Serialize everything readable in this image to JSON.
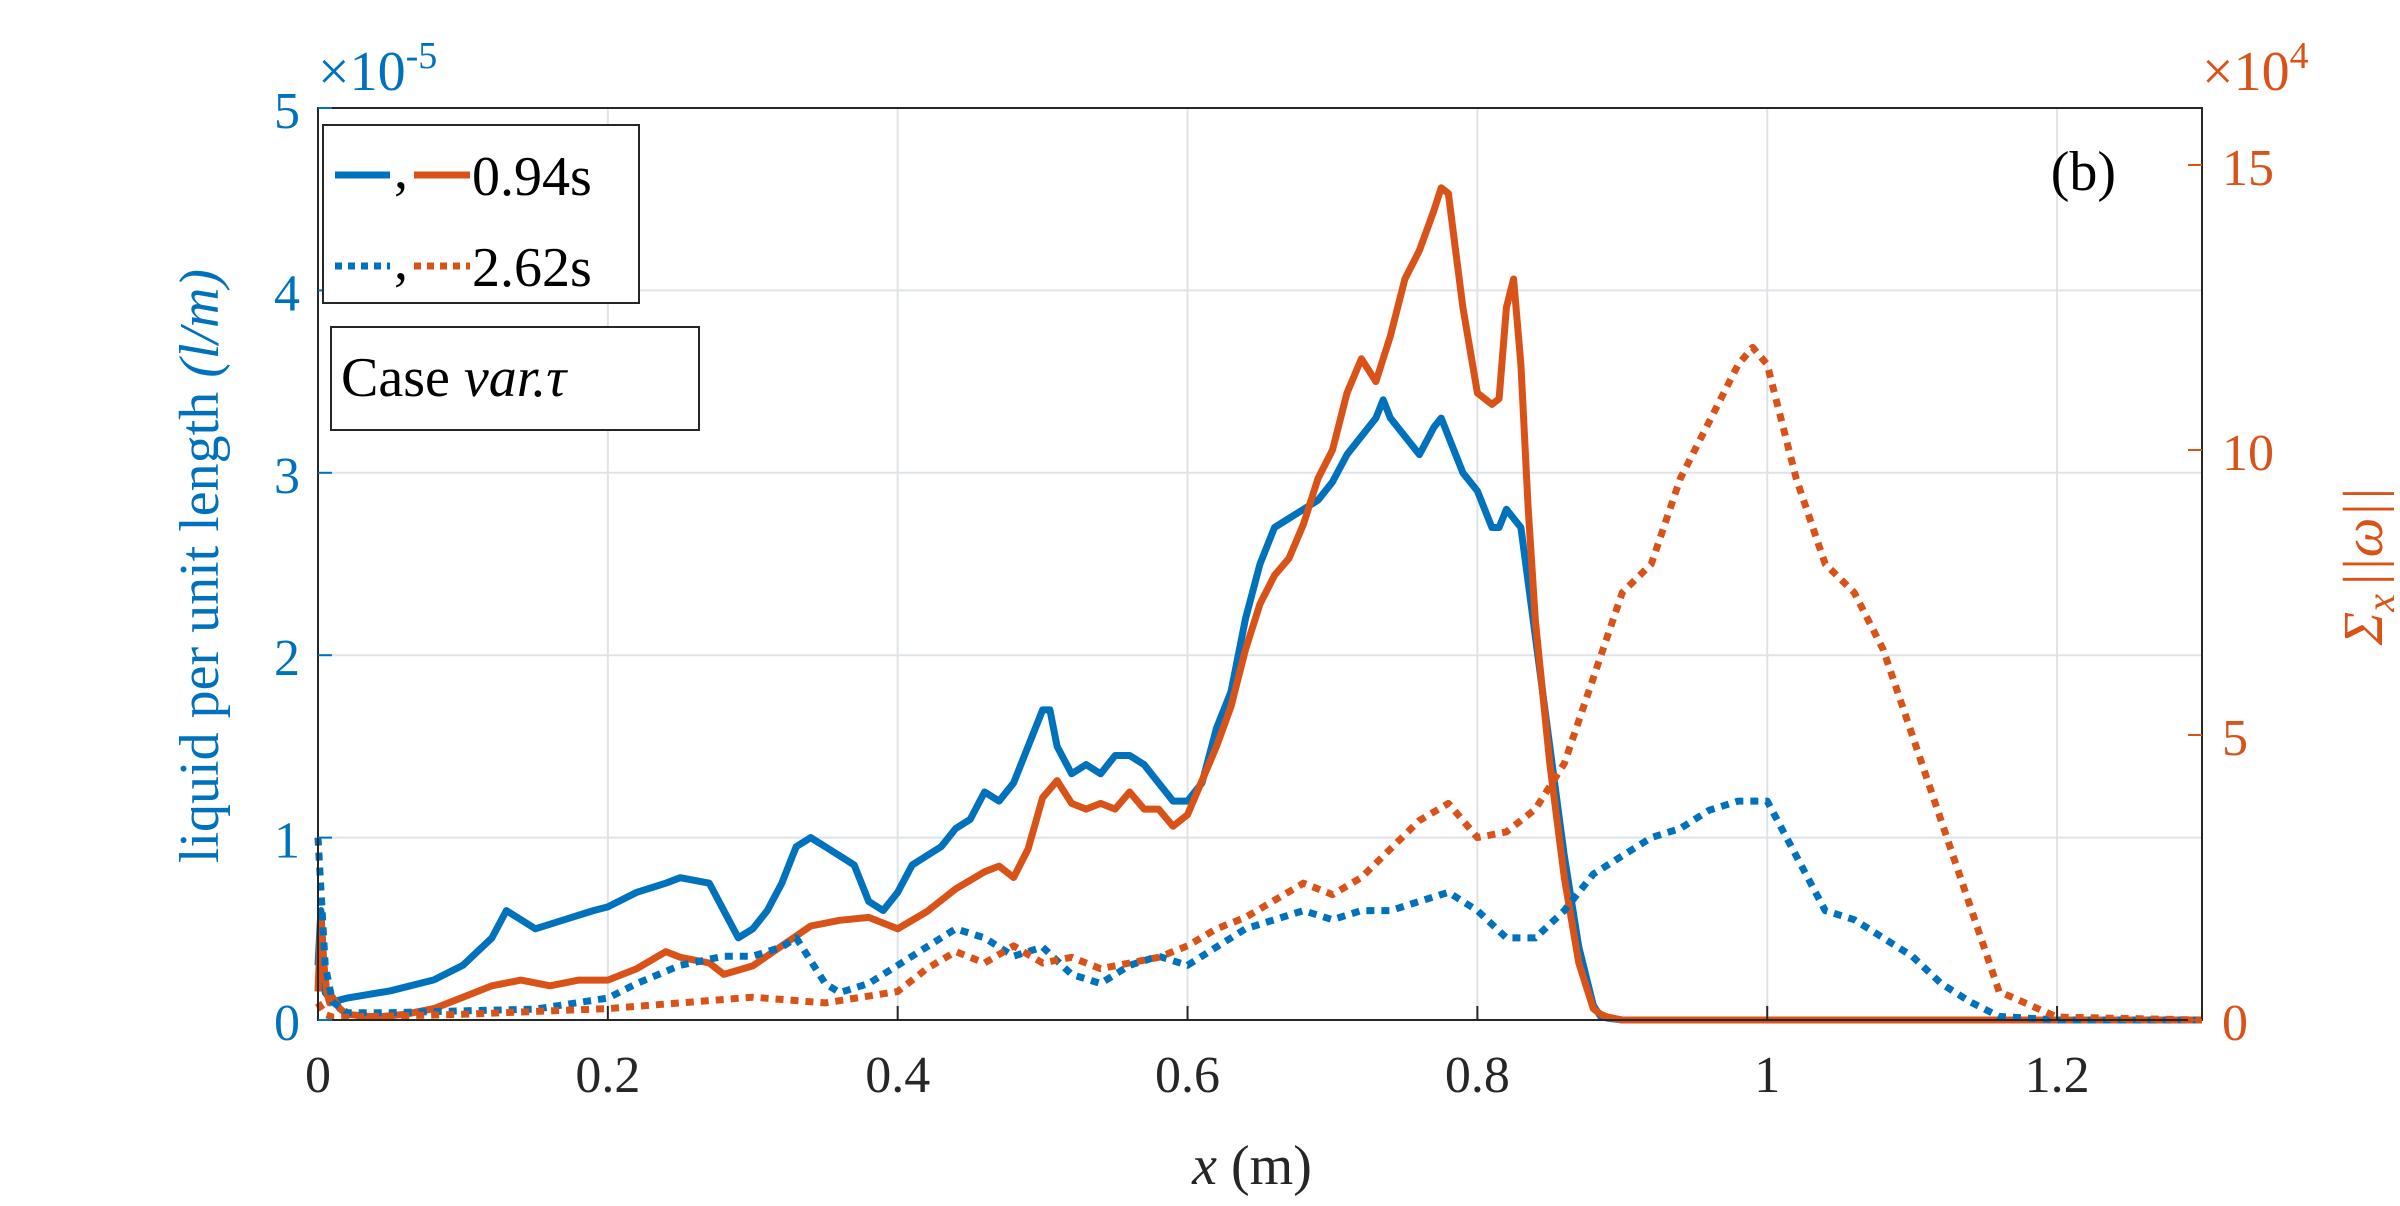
{
  "chart_data": {
    "type": "line",
    "panel_label": "(b)",
    "xlabel_var": "x",
    "xlabel_unit": "(m)",
    "xlim": [
      0,
      1.3
    ],
    "x_ticks": [
      0,
      0.2,
      0.4,
      0.6,
      0.8,
      1,
      1.2
    ],
    "x_tick_labels": [
      "0",
      "0.2",
      "0.4",
      "0.6",
      "0.8",
      "1",
      "1.2"
    ],
    "y_left": {
      "label_text": "liquid per unit length",
      "label_math": "(l/m)",
      "lim": [
        0,
        5
      ],
      "ticks": [
        0,
        1,
        2,
        3,
        4,
        5
      ],
      "tick_labels": [
        "0",
        "1",
        "2",
        "3",
        "4",
        "5"
      ],
      "exponent_base": "×10",
      "exponent_power": "-5",
      "color": "#0072BD"
    },
    "y_right": {
      "label_sigma": "Σ",
      "label_sub": "x",
      "label_omega": "||ω||",
      "lim": [
        0,
        16
      ],
      "ticks": [
        0,
        5,
        10,
        15
      ],
      "tick_labels": [
        "0",
        "5",
        "10",
        "15"
      ],
      "exponent_base": "×10",
      "exponent_power": "4",
      "color": "#D95319"
    },
    "grid": true,
    "legend": {
      "placement": "top-left",
      "entries": [
        {
          "separator": ",",
          "label": "0.94s",
          "style": "solid"
        },
        {
          "separator": ",",
          "label": "2.62s",
          "style": "dotted"
        }
      ],
      "case_text": "Case",
      "case_math": "var.τ"
    },
    "series": [
      {
        "name": "0.94s",
        "axis": "left",
        "style": "solid",
        "color": "#0072BD",
        "x": [
          0,
          0.002,
          0.005,
          0.01,
          0.02,
          0.05,
          0.08,
          0.1,
          0.12,
          0.13,
          0.14,
          0.15,
          0.17,
          0.19,
          0.2,
          0.22,
          0.24,
          0.25,
          0.27,
          0.28,
          0.29,
          0.3,
          0.31,
          0.32,
          0.33,
          0.34,
          0.35,
          0.36,
          0.37,
          0.38,
          0.39,
          0.4,
          0.41,
          0.42,
          0.43,
          0.44,
          0.45,
          0.46,
          0.47,
          0.48,
          0.49,
          0.5,
          0.505,
          0.51,
          0.52,
          0.53,
          0.54,
          0.55,
          0.56,
          0.57,
          0.58,
          0.59,
          0.6,
          0.61,
          0.62,
          0.63,
          0.64,
          0.65,
          0.66,
          0.67,
          0.68,
          0.69,
          0.7,
          0.71,
          0.72,
          0.73,
          0.735,
          0.74,
          0.75,
          0.76,
          0.77,
          0.775,
          0.78,
          0.79,
          0.8,
          0.81,
          0.815,
          0.82,
          0.83,
          0.84,
          0.85,
          0.86,
          0.87,
          0.88,
          0.885,
          0.89,
          0.9,
          1.0,
          1.1,
          1.2,
          1.3
        ],
        "y": [
          0.3,
          0.6,
          0.15,
          0.1,
          0.12,
          0.16,
          0.22,
          0.3,
          0.45,
          0.6,
          0.55,
          0.5,
          0.55,
          0.6,
          0.62,
          0.7,
          0.75,
          0.78,
          0.75,
          0.6,
          0.45,
          0.5,
          0.6,
          0.75,
          0.95,
          1.0,
          0.95,
          0.9,
          0.85,
          0.65,
          0.6,
          0.7,
          0.85,
          0.9,
          0.95,
          1.05,
          1.1,
          1.25,
          1.2,
          1.3,
          1.5,
          1.7,
          1.7,
          1.5,
          1.35,
          1.4,
          1.35,
          1.45,
          1.45,
          1.4,
          1.3,
          1.2,
          1.2,
          1.3,
          1.6,
          1.8,
          2.2,
          2.5,
          2.7,
          2.75,
          2.8,
          2.85,
          2.95,
          3.1,
          3.2,
          3.3,
          3.4,
          3.3,
          3.2,
          3.1,
          3.25,
          3.3,
          3.2,
          3.0,
          2.9,
          2.7,
          2.7,
          2.8,
          2.7,
          2.1,
          1.5,
          0.9,
          0.4,
          0.08,
          0.02,
          0.01,
          0,
          0,
          0,
          0,
          0
        ]
      },
      {
        "name": "0.94s",
        "axis": "right",
        "style": "solid",
        "color": "#D95319",
        "x": [
          0,
          0.002,
          0.004,
          0.006,
          0.008,
          0.01,
          0.015,
          0.02,
          0.04,
          0.06,
          0.08,
          0.1,
          0.12,
          0.14,
          0.16,
          0.18,
          0.2,
          0.22,
          0.24,
          0.25,
          0.27,
          0.28,
          0.3,
          0.32,
          0.34,
          0.36,
          0.38,
          0.4,
          0.42,
          0.44,
          0.46,
          0.47,
          0.48,
          0.49,
          0.5,
          0.51,
          0.52,
          0.53,
          0.54,
          0.55,
          0.56,
          0.57,
          0.58,
          0.59,
          0.6,
          0.61,
          0.62,
          0.63,
          0.64,
          0.65,
          0.66,
          0.67,
          0.68,
          0.69,
          0.7,
          0.71,
          0.72,
          0.73,
          0.74,
          0.75,
          0.76,
          0.77,
          0.775,
          0.78,
          0.785,
          0.79,
          0.8,
          0.81,
          0.815,
          0.82,
          0.825,
          0.83,
          0.835,
          0.84,
          0.85,
          0.86,
          0.87,
          0.88,
          0.885,
          0.89,
          0.9,
          1.0,
          1.1,
          1.2,
          1.3
        ],
        "y": [
          0.5,
          1.8,
          1.0,
          0.5,
          0.3,
          0.4,
          0.2,
          0.1,
          0.05,
          0.1,
          0.2,
          0.4,
          0.6,
          0.7,
          0.6,
          0.7,
          0.7,
          0.9,
          1.2,
          1.1,
          1.0,
          0.8,
          0.95,
          1.3,
          1.65,
          1.75,
          1.8,
          1.6,
          1.9,
          2.3,
          2.6,
          2.7,
          2.5,
          3.0,
          3.9,
          4.2,
          3.8,
          3.7,
          3.8,
          3.7,
          4.0,
          3.7,
          3.7,
          3.4,
          3.6,
          4.2,
          4.8,
          5.5,
          6.5,
          7.3,
          7.8,
          8.1,
          8.7,
          9.5,
          10.0,
          11.0,
          11.6,
          11.2,
          12.0,
          13.0,
          13.5,
          14.2,
          14.6,
          14.5,
          13.5,
          12.5,
          11.0,
          10.8,
          10.9,
          12.5,
          13.0,
          11.5,
          9.0,
          7.0,
          4.5,
          2.5,
          1.0,
          0.2,
          0.1,
          0.05,
          0,
          0,
          0,
          0,
          0
        ]
      },
      {
        "name": "2.62s",
        "axis": "left",
        "style": "dotted",
        "color": "#0072BD",
        "x": [
          0,
          0.005,
          0.01,
          0.02,
          0.05,
          0.1,
          0.15,
          0.2,
          0.22,
          0.25,
          0.28,
          0.3,
          0.32,
          0.33,
          0.35,
          0.36,
          0.38,
          0.4,
          0.42,
          0.44,
          0.46,
          0.48,
          0.5,
          0.52,
          0.54,
          0.56,
          0.58,
          0.6,
          0.62,
          0.64,
          0.66,
          0.68,
          0.7,
          0.72,
          0.74,
          0.76,
          0.78,
          0.8,
          0.82,
          0.84,
          0.86,
          0.88,
          0.9,
          0.92,
          0.94,
          0.96,
          0.98,
          1.0,
          1.02,
          1.04,
          1.06,
          1.08,
          1.1,
          1.12,
          1.14,
          1.16,
          1.2,
          1.3
        ],
        "y": [
          1.0,
          0.3,
          0.1,
          0.04,
          0.04,
          0.05,
          0.06,
          0.12,
          0.2,
          0.3,
          0.35,
          0.35,
          0.4,
          0.45,
          0.2,
          0.15,
          0.2,
          0.3,
          0.4,
          0.5,
          0.45,
          0.35,
          0.4,
          0.25,
          0.2,
          0.3,
          0.35,
          0.3,
          0.4,
          0.5,
          0.55,
          0.6,
          0.55,
          0.6,
          0.6,
          0.65,
          0.7,
          0.6,
          0.45,
          0.45,
          0.6,
          0.8,
          0.9,
          1.0,
          1.05,
          1.15,
          1.2,
          1.2,
          0.9,
          0.6,
          0.55,
          0.45,
          0.35,
          0.2,
          0.1,
          0.02,
          0,
          0
        ]
      },
      {
        "name": "2.62s",
        "axis": "right",
        "style": "dotted",
        "color": "#D95319",
        "x": [
          0,
          0.005,
          0.01,
          0.02,
          0.1,
          0.2,
          0.25,
          0.3,
          0.35,
          0.4,
          0.42,
          0.44,
          0.46,
          0.48,
          0.5,
          0.52,
          0.54,
          0.56,
          0.58,
          0.6,
          0.62,
          0.64,
          0.66,
          0.68,
          0.7,
          0.72,
          0.74,
          0.76,
          0.78,
          0.8,
          0.82,
          0.84,
          0.86,
          0.88,
          0.9,
          0.92,
          0.94,
          0.96,
          0.98,
          0.99,
          1.0,
          1.02,
          1.04,
          1.06,
          1.08,
          1.1,
          1.12,
          1.14,
          1.16,
          1.2,
          1.3
        ],
        "y": [
          0.3,
          0.1,
          0.05,
          0.05,
          0.1,
          0.2,
          0.3,
          0.4,
          0.3,
          0.5,
          0.9,
          1.2,
          1.0,
          1.3,
          1.0,
          1.1,
          0.9,
          1.0,
          1.1,
          1.3,
          1.6,
          1.8,
          2.1,
          2.4,
          2.2,
          2.5,
          3.0,
          3.5,
          3.8,
          3.2,
          3.3,
          3.7,
          4.5,
          6.0,
          7.5,
          8.0,
          9.5,
          10.5,
          11.5,
          11.8,
          11.5,
          9.5,
          8.0,
          7.5,
          6.5,
          5.0,
          3.5,
          2.0,
          0.5,
          0.05,
          0
        ]
      }
    ]
  }
}
